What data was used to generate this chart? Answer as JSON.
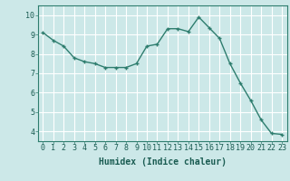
{
  "x": [
    0,
    1,
    2,
    3,
    4,
    5,
    6,
    7,
    8,
    9,
    10,
    11,
    12,
    13,
    14,
    15,
    16,
    17,
    18,
    19,
    20,
    21,
    22,
    23
  ],
  "y": [
    9.1,
    8.7,
    8.4,
    7.8,
    7.6,
    7.5,
    7.3,
    7.3,
    7.3,
    7.5,
    8.4,
    8.5,
    9.3,
    9.3,
    9.15,
    9.9,
    9.35,
    8.8,
    7.5,
    6.5,
    5.6,
    4.6,
    3.9,
    3.85
  ],
  "line_color": "#2e7d6e",
  "marker": "+",
  "marker_size": 3,
  "linewidth": 1.0,
  "bg_color": "#cce8e8",
  "grid_color": "#ffffff",
  "xlabel": "Humidex (Indice chaleur)",
  "xlim": [
    -0.5,
    23.5
  ],
  "ylim": [
    3.5,
    10.5
  ],
  "yticks": [
    4,
    5,
    6,
    7,
    8,
    9,
    10
  ],
  "xticks": [
    0,
    1,
    2,
    3,
    4,
    5,
    6,
    7,
    8,
    9,
    10,
    11,
    12,
    13,
    14,
    15,
    16,
    17,
    18,
    19,
    20,
    21,
    22,
    23
  ],
  "xtick_labels": [
    "0",
    "1",
    "2",
    "3",
    "4",
    "5",
    "6",
    "7",
    "8",
    "9",
    "10",
    "11",
    "12",
    "13",
    "14",
    "15",
    "16",
    "17",
    "18",
    "19",
    "20",
    "21",
    "22",
    "23"
  ],
  "xlabel_fontsize": 7,
  "tick_fontsize": 6,
  "ylabel_color": "#2e7d6e",
  "text_color": "#1a5c52"
}
